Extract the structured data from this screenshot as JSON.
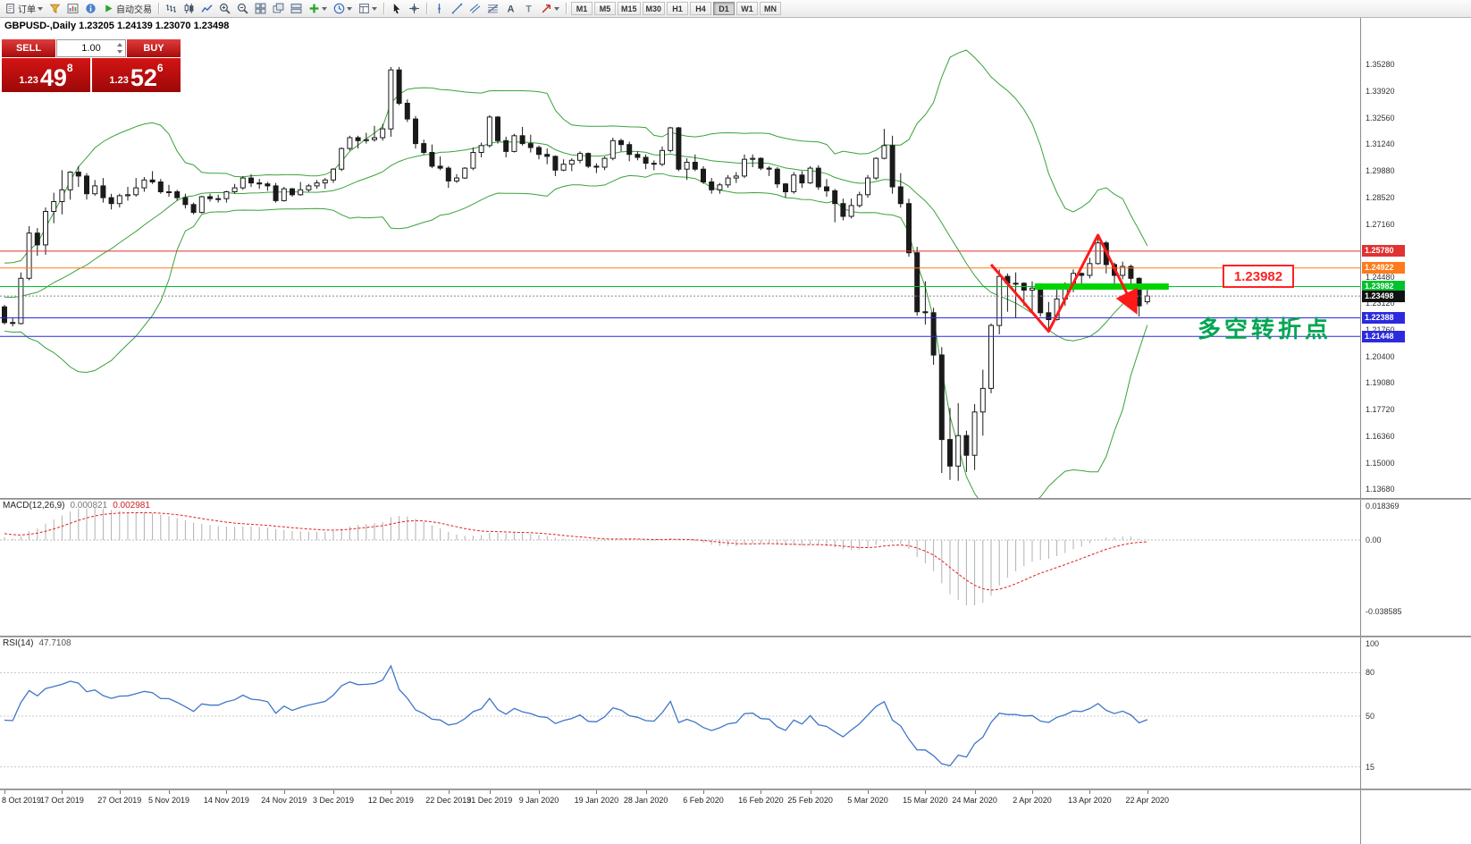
{
  "toolbar": {
    "items": [
      {
        "name": "new-order-button",
        "icon": "doc",
        "label": "订单",
        "caret": true
      },
      {
        "name": "market-watch-button",
        "icon": "funnel"
      },
      {
        "name": "chart-window-button",
        "icon": "chart-window"
      },
      {
        "name": "data-window-button",
        "icon": "info"
      },
      {
        "name": "auto-trading-button",
        "icon": "play",
        "label": "自动交易"
      },
      {
        "sep": true
      },
      {
        "name": "bar-chart-button",
        "icon": "bars"
      },
      {
        "name": "candlestick-chart-button",
        "icon": "candles"
      },
      {
        "name": "line-chart-button",
        "icon": "linechart"
      },
      {
        "name": "zoom-in-button",
        "icon": "zoom-in"
      },
      {
        "name": "zoom-out-button",
        "icon": "zoom-out"
      },
      {
        "name": "tile-windows-button",
        "icon": "tile"
      },
      {
        "name": "cascade-windows-button",
        "icon": "cascade"
      },
      {
        "name": "tile-horizontal-button",
        "icon": "tileh"
      },
      {
        "name": "add-indicator-button",
        "icon": "plus",
        "caret": true
      },
      {
        "name": "period-menu-button",
        "icon": "clock",
        "caret": true
      },
      {
        "name": "template-menu-button",
        "icon": "template",
        "caret": true
      },
      {
        "sep": true
      },
      {
        "name": "cursor-tool-button",
        "icon": "cursor"
      },
      {
        "name": "crosshair-tool-button",
        "icon": "crosshair"
      },
      {
        "sep": true
      },
      {
        "name": "vertical-line-tool-button",
        "icon": "vline"
      },
      {
        "name": "trendline-tool-button",
        "icon": "trendline"
      },
      {
        "name": "channel-tool-button",
        "icon": "channel"
      },
      {
        "name": "fibonacci-tool-button",
        "icon": "fibo"
      },
      {
        "name": "text-tool-button",
        "icon": "textA"
      },
      {
        "name": "label-tool-button",
        "icon": "labelT"
      },
      {
        "name": "arrows-tool-button",
        "icon": "arrowshape",
        "caret": true
      },
      {
        "sep": true
      }
    ],
    "timeframes": [
      "M1",
      "M5",
      "M15",
      "M30",
      "H1",
      "H4",
      "D1",
      "W1",
      "MN"
    ],
    "active_timeframe": "D1"
  },
  "chart": {
    "title": "GBPUSD-,Daily 1.23205 1.24139 1.23070 1.23498"
  },
  "trade_panel": {
    "sell_label": "SELL",
    "buy_label": "BUY",
    "volume": "1.00",
    "sell_price_small": "1.23",
    "sell_price_big": "49",
    "sell_price_sup": "8",
    "buy_price_small": "1.23",
    "buy_price_big": "52",
    "buy_price_sup": "6"
  },
  "annotations": {
    "price_callout": "1.23982",
    "cn_note": "多空转折点",
    "zigzag": {
      "color": "#ff1a1a",
      "width": 3,
      "points": [
        {
          "i": 120,
          "p": 1.251
        },
        {
          "i": 127,
          "p": 1.217
        },
        {
          "i": 133,
          "p": 1.266
        },
        {
          "i": 137.5,
          "p": 1.228
        }
      ]
    },
    "green_segment": {
      "price": 1.23982,
      "i_start": 125.3,
      "i_end": 141.6,
      "thickness": 7,
      "color": "#00d400"
    }
  },
  "colors": {
    "bollinger": "#3aa23a",
    "candle_up": "#ffffff",
    "candle_down": "#1a1a1a",
    "candle_outline": "#1a1a1a",
    "macd_hist": "#b0b0b0",
    "macd_signal": "#e02020",
    "rsi_line": "#3f76c8",
    "current_price_line": "#888888"
  },
  "chart_data": {
    "type": "candlestick",
    "symbol": "GBPUSD",
    "period": "Daily",
    "ohlc_display": {
      "open": "1.23205",
      "high": "1.24139",
      "low": "1.23070",
      "close": "1.23498"
    },
    "price_axis": {
      "ticks": [
        "1.35280",
        "1.33920",
        "1.32560",
        "1.31240",
        "1.29880",
        "1.28520",
        "1.27160",
        "1.24480",
        "1.23120",
        "1.21760",
        "1.20400",
        "1.19080",
        "1.17720",
        "1.16360",
        "1.15000",
        "1.13680"
      ]
    },
    "hlines": [
      {
        "price": 1.2578,
        "label": "1.25780",
        "color": "#e03232"
      },
      {
        "price": 1.24922,
        "label": "1.24922",
        "color": "#ff7a1a"
      },
      {
        "price": 1.23982,
        "label": "1.23982",
        "color": "#00c22e"
      },
      {
        "price": 1.22388,
        "label": "1.22388",
        "color": "#2b2bdd"
      },
      {
        "price": 1.21448,
        "label": "1.21448",
        "color": "#2b2bdd"
      }
    ],
    "current_price": {
      "value": 1.23498,
      "label": "1.23498"
    },
    "bollinger": {
      "period": 20,
      "deviation": 2
    },
    "macd": {
      "name": "MACD(12,26,9)",
      "main": "0.000821",
      "signal": "0.002981",
      "axis_labels": [
        "0.018369",
        "0.00",
        "-0.038585"
      ]
    },
    "rsi": {
      "name": "RSI(14)",
      "value": "47.7108",
      "axis_labels": [
        "100",
        "80",
        "50",
        "15"
      ],
      "levels": [
        80,
        50,
        15
      ]
    },
    "x_labels": [
      {
        "t": "8 Oct 2019",
        "i": 0
      },
      {
        "t": "17 Oct 2019",
        "i": 7
      },
      {
        "t": "27 Oct 2019",
        "i": 14
      },
      {
        "t": "5 Nov 2019",
        "i": 20
      },
      {
        "t": "14 Nov 2019",
        "i": 27
      },
      {
        "t": "24 Nov 2019",
        "i": 34
      },
      {
        "t": "3 Dec 2019",
        "i": 40
      },
      {
        "t": "12 Dec 2019",
        "i": 47
      },
      {
        "t": "22 Dec 2019",
        "i": 54
      },
      {
        "t": "31 Dec 2019",
        "i": 59
      },
      {
        "t": "9 Jan 2020",
        "i": 65
      },
      {
        "t": "19 Jan 2020",
        "i": 72
      },
      {
        "t": "28 Jan 2020",
        "i": 78
      },
      {
        "t": "6 Feb 2020",
        "i": 85
      },
      {
        "t": "16 Feb 2020",
        "i": 92
      },
      {
        "t": "25 Feb 2020",
        "i": 98
      },
      {
        "t": "5 Mar 2020",
        "i": 105
      },
      {
        "t": "15 Mar 2020",
        "i": 112
      },
      {
        "t": "24 Mar 2020",
        "i": 118
      },
      {
        "t": "2 Apr 2020",
        "i": 125
      },
      {
        "t": "13 Apr 2020",
        "i": 132
      },
      {
        "t": "22 Apr 2020",
        "i": 139
      }
    ],
    "warmup_closes": [
      1.2165,
      1.208,
      1.2015,
      1.198,
      1.204,
      1.2075,
      1.215,
      1.2235,
      1.233,
      1.2465,
      1.241,
      1.2325,
      1.229,
      1.248,
      1.252,
      1.2475,
      1.244,
      1.232,
      1.2285,
      1.2325,
      1.2245,
      1.229,
      1.232,
      1.229,
      1.233,
      1.2295
    ],
    "candles": [
      [
        1.2295,
        1.2305,
        1.2205,
        1.2215
      ],
      [
        1.2215,
        1.224,
        1.2195,
        1.221
      ],
      [
        1.221,
        1.247,
        1.2205,
        1.244
      ],
      [
        1.244,
        1.2705,
        1.243,
        1.267
      ],
      [
        1.267,
        1.2695,
        1.2555,
        1.261
      ],
      [
        1.261,
        1.28,
        1.256,
        1.278
      ],
      [
        1.278,
        1.2875,
        1.272,
        1.283
      ],
      [
        1.283,
        1.299,
        1.2765,
        1.289
      ],
      [
        1.289,
        1.2985,
        1.284,
        1.298
      ],
      [
        1.298,
        1.301,
        1.2905,
        1.296
      ],
      [
        1.296,
        1.2975,
        1.284,
        1.287
      ],
      [
        1.287,
        1.294,
        1.286,
        1.291
      ],
      [
        1.291,
        1.295,
        1.2825,
        1.285
      ],
      [
        1.285,
        1.287,
        1.279,
        1.282
      ],
      [
        1.282,
        1.287,
        1.28,
        1.286
      ],
      [
        1.286,
        1.2905,
        1.2835,
        1.2865
      ],
      [
        1.2865,
        1.295,
        1.2855,
        1.29
      ],
      [
        1.29,
        1.2955,
        1.288,
        1.294
      ],
      [
        1.294,
        1.2985,
        1.292,
        1.293
      ],
      [
        1.293,
        1.2945,
        1.287,
        1.288
      ],
      [
        1.288,
        1.2915,
        1.2855,
        1.288
      ],
      [
        1.288,
        1.289,
        1.2835,
        1.285
      ],
      [
        1.285,
        1.287,
        1.2795,
        1.2815
      ],
      [
        1.2815,
        1.2825,
        1.2765,
        1.2775
      ],
      [
        1.2775,
        1.286,
        1.277,
        1.2855
      ],
      [
        1.2855,
        1.287,
        1.283,
        1.2845
      ],
      [
        1.2845,
        1.2865,
        1.2825,
        1.2845
      ],
      [
        1.2845,
        1.2885,
        1.2825,
        1.288
      ],
      [
        1.288,
        1.292,
        1.287,
        1.29
      ],
      [
        1.29,
        1.296,
        1.289,
        1.295
      ],
      [
        1.295,
        1.297,
        1.2905,
        1.2925
      ],
      [
        1.2925,
        1.2945,
        1.2895,
        1.292
      ],
      [
        1.292,
        1.293,
        1.2885,
        1.291
      ],
      [
        1.291,
        1.2925,
        1.2825,
        1.2835
      ],
      [
        1.2835,
        1.2905,
        1.283,
        1.2895
      ],
      [
        1.2895,
        1.29,
        1.2855,
        1.2865
      ],
      [
        1.2865,
        1.293,
        1.286,
        1.289
      ],
      [
        1.289,
        1.292,
        1.288,
        1.291
      ],
      [
        1.291,
        1.294,
        1.2895,
        1.2925
      ],
      [
        1.2925,
        1.295,
        1.2895,
        1.294
      ],
      [
        1.294,
        1.3,
        1.2925,
        1.2995
      ],
      [
        1.2995,
        1.3105,
        1.2985,
        1.31
      ],
      [
        1.31,
        1.3165,
        1.309,
        1.3155
      ],
      [
        1.3155,
        1.3165,
        1.31,
        1.314
      ],
      [
        1.314,
        1.318,
        1.3125,
        1.3145
      ],
      [
        1.3145,
        1.3215,
        1.3135,
        1.3155
      ],
      [
        1.3155,
        1.3225,
        1.314,
        1.32
      ],
      [
        1.32,
        1.3515,
        1.316,
        1.35
      ],
      [
        1.35,
        1.3515,
        1.332,
        1.333
      ],
      [
        1.333,
        1.335,
        1.3235,
        1.325
      ],
      [
        1.325,
        1.3265,
        1.31,
        1.3125
      ],
      [
        1.3125,
        1.3145,
        1.307,
        1.308
      ],
      [
        1.308,
        1.312,
        1.3,
        1.301
      ],
      [
        1.301,
        1.306,
        1.299,
        1.3
      ],
      [
        1.3,
        1.301,
        1.29,
        1.2935
      ],
      [
        1.2935,
        1.297,
        1.2925,
        1.295
      ],
      [
        1.295,
        1.3005,
        1.2945,
        1.3
      ],
      [
        1.3,
        1.3105,
        1.299,
        1.308
      ],
      [
        1.308,
        1.313,
        1.3055,
        1.3115
      ],
      [
        1.3115,
        1.327,
        1.3105,
        1.326
      ],
      [
        1.326,
        1.3265,
        1.3125,
        1.314
      ],
      [
        1.314,
        1.316,
        1.3055,
        1.3085
      ],
      [
        1.3085,
        1.3175,
        1.308,
        1.3165
      ],
      [
        1.3165,
        1.321,
        1.3115,
        1.3125
      ],
      [
        1.3125,
        1.317,
        1.308,
        1.3105
      ],
      [
        1.3105,
        1.3115,
        1.3045,
        1.307
      ],
      [
        1.307,
        1.31,
        1.302,
        1.306
      ],
      [
        1.306,
        1.3065,
        1.296,
        1.299
      ],
      [
        1.299,
        1.3045,
        1.2985,
        1.302
      ],
      [
        1.302,
        1.305,
        1.2985,
        1.304
      ],
      [
        1.304,
        1.3085,
        1.3025,
        1.3075
      ],
      [
        1.3075,
        1.308,
        1.3,
        1.301
      ],
      [
        1.301,
        1.3025,
        1.2975,
        1.3005
      ],
      [
        1.3005,
        1.306,
        1.299,
        1.305
      ],
      [
        1.305,
        1.3155,
        1.304,
        1.314
      ],
      [
        1.314,
        1.315,
        1.3085,
        1.312
      ],
      [
        1.312,
        1.3135,
        1.3035,
        1.307
      ],
      [
        1.307,
        1.3085,
        1.304,
        1.3055
      ],
      [
        1.3055,
        1.307,
        1.2995,
        1.3025
      ],
      [
        1.3025,
        1.304,
        1.299,
        1.302
      ],
      [
        1.302,
        1.311,
        1.301,
        1.309
      ],
      [
        1.309,
        1.321,
        1.308,
        1.3205
      ],
      [
        1.3205,
        1.321,
        1.2985,
        1.2995
      ],
      [
        1.2995,
        1.305,
        1.294,
        1.303
      ],
      [
        1.303,
        1.307,
        1.2985,
        1.2995
      ],
      [
        1.2995,
        1.301,
        1.292,
        1.293
      ],
      [
        1.293,
        1.295,
        1.287,
        1.289
      ],
      [
        1.289,
        1.2925,
        1.287,
        1.2915
      ],
      [
        1.2915,
        1.2965,
        1.29,
        1.295
      ],
      [
        1.295,
        1.298,
        1.2925,
        1.296
      ],
      [
        1.296,
        1.307,
        1.295,
        1.3045
      ],
      [
        1.3045,
        1.307,
        1.3005,
        1.305
      ],
      [
        1.305,
        1.3055,
        1.299,
        1.3
      ],
      [
        1.3,
        1.301,
        1.296,
        1.2995
      ],
      [
        1.2995,
        1.3005,
        1.29,
        1.292
      ],
      [
        1.292,
        1.2925,
        1.285,
        1.288
      ],
      [
        1.288,
        1.298,
        1.287,
        1.2965
      ],
      [
        1.2965,
        1.2985,
        1.29,
        1.2925
      ],
      [
        1.2925,
        1.301,
        1.292,
        1.3
      ],
      [
        1.3,
        1.3015,
        1.289,
        1.2905
      ],
      [
        1.2905,
        1.2945,
        1.2855,
        1.2885
      ],
      [
        1.2885,
        1.2895,
        1.2725,
        1.282
      ],
      [
        1.282,
        1.2845,
        1.2735,
        1.2755
      ],
      [
        1.2755,
        1.2845,
        1.2745,
        1.281
      ],
      [
        1.281,
        1.288,
        1.28,
        1.2865
      ],
      [
        1.2865,
        1.2965,
        1.285,
        1.295
      ],
      [
        1.295,
        1.3055,
        1.294,
        1.305
      ],
      [
        1.305,
        1.32,
        1.3045,
        1.3115
      ],
      [
        1.3115,
        1.3165,
        1.287,
        1.2905
      ],
      [
        1.2905,
        1.2975,
        1.28,
        1.282
      ],
      [
        1.282,
        1.2845,
        1.255,
        1.257
      ],
      [
        1.257,
        1.26,
        1.225,
        1.227
      ],
      [
        1.227,
        1.2425,
        1.2205,
        1.2265
      ],
      [
        1.2265,
        1.229,
        1.2,
        1.205
      ],
      [
        1.205,
        1.209,
        1.145,
        1.162
      ],
      [
        1.162,
        1.178,
        1.1415,
        1.1485
      ],
      [
        1.1485,
        1.1805,
        1.141,
        1.164
      ],
      [
        1.164,
        1.1665,
        1.1455,
        1.154
      ],
      [
        1.154,
        1.18,
        1.1465,
        1.176
      ],
      [
        1.176,
        1.1975,
        1.164,
        1.188
      ],
      [
        1.188,
        1.221,
        1.1855,
        1.22
      ],
      [
        1.22,
        1.2485,
        1.2155,
        1.245
      ],
      [
        1.245,
        1.2465,
        1.227,
        1.2415
      ],
      [
        1.2415,
        1.247,
        1.224,
        1.2415
      ],
      [
        1.2415,
        1.242,
        1.23,
        1.238
      ],
      [
        1.238,
        1.2425,
        1.2265,
        1.239
      ],
      [
        1.239,
        1.2415,
        1.2245,
        1.2265
      ],
      [
        1.2265,
        1.232,
        1.2165,
        1.223
      ],
      [
        1.223,
        1.2395,
        1.2225,
        1.2335
      ],
      [
        1.2335,
        1.242,
        1.23,
        1.2385
      ],
      [
        1.2385,
        1.2485,
        1.237,
        1.2465
      ],
      [
        1.2465,
        1.247,
        1.2405,
        1.2455
      ],
      [
        1.2455,
        1.2545,
        1.244,
        1.2515
      ],
      [
        1.2515,
        1.265,
        1.251,
        1.262
      ],
      [
        1.262,
        1.263,
        1.2465,
        1.251
      ],
      [
        1.251,
        1.252,
        1.2405,
        1.2455
      ],
      [
        1.2455,
        1.2525,
        1.2435,
        1.25
      ],
      [
        1.25,
        1.251,
        1.2405,
        1.244
      ],
      [
        1.244,
        1.2445,
        1.2245,
        1.23
      ],
      [
        1.23205,
        1.24139,
        1.2307,
        1.23498
      ]
    ]
  }
}
